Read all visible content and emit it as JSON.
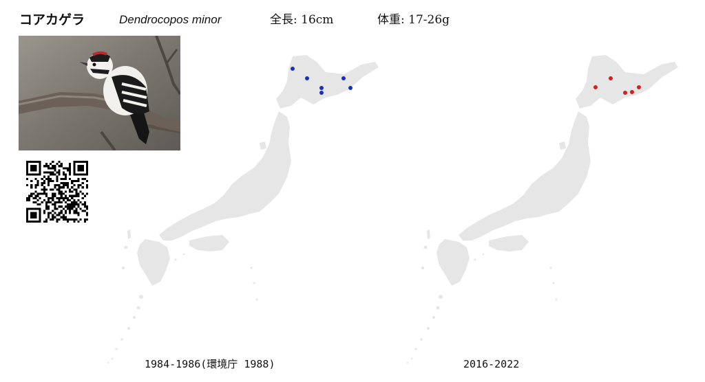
{
  "header": {
    "name_ja": "コアカゲラ",
    "name_scientific": "Dendrocopos minor",
    "length": "全長: 16cm",
    "weight": "体重: 17-26g"
  },
  "colors": {
    "land": "#e6e6e6",
    "dot_old": "#1a2fbf",
    "dot_new": "#d42020"
  },
  "maps": {
    "old": {
      "caption": "1984-1986(環境庁 1988)",
      "marker": "blue-dot"
    },
    "new": {
      "caption": "2016-2022",
      "marker": "red-dot"
    }
  },
  "photo": {
    "subject": "woodpecker-on-branch"
  },
  "qr": {
    "icon": "qr-code-icon"
  }
}
